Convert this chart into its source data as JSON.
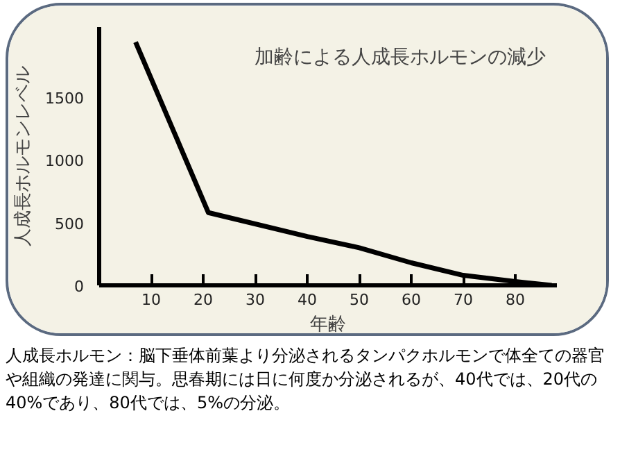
{
  "chart_data": {
    "type": "line",
    "title": "加齢による人成長ホルモンの減少",
    "xlabel": "年齢",
    "ylabel": "人成長ホルモンレベル",
    "x": [
      7,
      21,
      40,
      50,
      60,
      70,
      80,
      87
    ],
    "series": [
      {
        "color": "#000000",
        "values": [
          1940,
          580,
          390,
          300,
          180,
          80,
          30,
          0
        ]
      }
    ],
    "xlim": [
      0,
      88
    ],
    "ylim": [
      0,
      2060
    ],
    "xticks": [
      10,
      20,
      30,
      40,
      50,
      60,
      70,
      80
    ],
    "yticks": [
      0,
      500,
      1000,
      1500
    ],
    "grid": false,
    "marker": "none",
    "line_style": "solid",
    "annotations": [
      "人成長ホルモン：脳下垂体前葉より分泌されるタンパクホルモンで体全ての器官や組織の発達に関与。思春期には日に何度か分泌されるが、40代では、20代の40%であり、80代では、5%の分泌。"
    ]
  }
}
